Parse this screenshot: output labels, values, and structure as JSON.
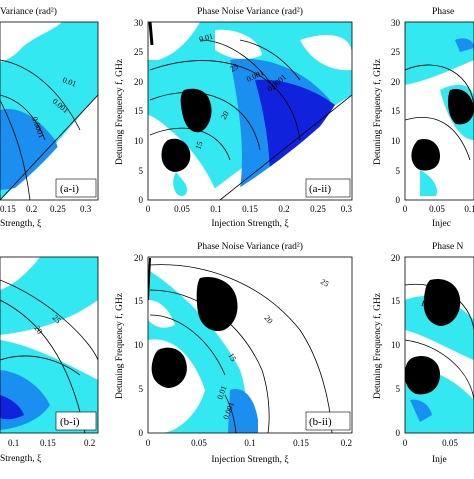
{
  "figure": {
    "panels": [
      {
        "id": "a-i",
        "label": "(a-i)",
        "title": "Variance (rad²)",
        "xlabel": "Strength, ξ",
        "ylabel": "",
        "x_ticks": [
          "0.15",
          "0.2",
          "0.25",
          "0.3"
        ],
        "y_ticks": [],
        "contour_labels": [
          "0.01",
          "0.001",
          "0.0001"
        ]
      },
      {
        "id": "a-ii",
        "label": "(a-ii)",
        "title": "Phase Noise Variance (rad²)",
        "xlabel": "Injection Strength, ξ",
        "ylabel": "Detuning Frequency f, GHz",
        "x_ticks": [
          "0",
          "0.05",
          "0.1",
          "0.15",
          "0.2",
          "0.25",
          "0.3"
        ],
        "y_ticks": [
          "0",
          "5",
          "10",
          "15",
          "20",
          "25",
          "30"
        ],
        "contour_labels": [
          "0.01",
          "0.001",
          "0.0001",
          "25",
          "20",
          "15"
        ]
      },
      {
        "id": "a-iii",
        "label": "",
        "title": "Phase",
        "xlabel": "Injec",
        "ylabel": "Detuning Frequency f, GHz",
        "x_ticks": [
          "0",
          "0.05",
          "0.1"
        ],
        "y_ticks": [
          "0",
          "5",
          "10",
          "15",
          "20",
          "25",
          "30"
        ],
        "contour_labels": []
      },
      {
        "id": "b-i",
        "label": "(b-i)",
        "title": "",
        "xlabel": "Strength, ξ",
        "ylabel": "",
        "x_ticks": [
          "0.1",
          "0.15",
          "0.2"
        ],
        "y_ticks": [],
        "contour_labels": [
          "25",
          "20"
        ]
      },
      {
        "id": "b-ii",
        "label": "(b-ii)",
        "title": "Phase Noise Variance (rad²)",
        "xlabel": "Injection Strength, ξ",
        "ylabel": "Detuning Frequency f, GHz",
        "x_ticks": [
          "0",
          "0.05",
          "0.1",
          "0.15",
          "0.2"
        ],
        "y_ticks": [
          "0",
          "5",
          "10",
          "15",
          "20"
        ],
        "contour_labels": [
          "25",
          "20",
          "15",
          "0.01",
          "0.001"
        ]
      },
      {
        "id": "b-iii",
        "label": "",
        "title": "Phase N",
        "xlabel": "Inje",
        "ylabel": "Detuning Frequency f, GHz",
        "x_ticks": [
          "0",
          "0.05"
        ],
        "y_ticks": [
          "0",
          "5",
          "10",
          "15",
          "20"
        ],
        "contour_labels": [
          "15"
        ]
      }
    ],
    "colors": {
      "light_cyan": "#33e8f0",
      "mid_blue": "#1a8ff0",
      "dark_blue": "#1122dd",
      "black": "#000000"
    }
  },
  "chart_data": [
    {
      "type": "heatmap",
      "panel": "(a-i)",
      "title": "Variance (rad²)",
      "xlabel": "Strength, ξ",
      "xlim": [
        0.1,
        0.3
      ],
      "contour_levels": [
        0.01,
        0.001,
        0.0001
      ]
    },
    {
      "type": "heatmap",
      "panel": "(a-ii)",
      "title": "Phase Noise Variance (rad²)",
      "xlabel": "Injection Strength, ξ",
      "ylabel": "Detuning Frequency f, GHz",
      "xlim": [
        0,
        0.3
      ],
      "ylim": [
        0,
        30
      ],
      "contour_levels": [
        0.01,
        0.001,
        0.0001
      ],
      "frequency_contours": [
        15,
        20,
        25
      ]
    },
    {
      "type": "heatmap",
      "panel": "",
      "title": "Phase",
      "xlabel": "Injec",
      "ylabel": "Detuning Frequency f, GHz",
      "xlim": [
        0,
        0.12
      ],
      "ylim": [
        0,
        30
      ]
    },
    {
      "type": "heatmap",
      "panel": "(b-i)",
      "xlabel": "Strength, ξ",
      "xlim": [
        0.08,
        0.2
      ],
      "frequency_contours": [
        20,
        25
      ]
    },
    {
      "type": "heatmap",
      "panel": "(b-ii)",
      "title": "Phase Noise Variance (rad²)",
      "xlabel": "Injection Strength, ξ",
      "ylabel": "Detuning Frequency f, GHz",
      "xlim": [
        0,
        0.2
      ],
      "ylim": [
        0,
        20
      ],
      "contour_levels": [
        0.01,
        0.001
      ],
      "frequency_contours": [
        15,
        20,
        25
      ]
    },
    {
      "type": "heatmap",
      "panel": "",
      "title": "Phase N",
      "xlabel": "Inje",
      "ylabel": "Detuning Frequency f, GHz",
      "xlim": [
        0,
        0.08
      ],
      "ylim": [
        0,
        20
      ],
      "frequency_contours": [
        15
      ]
    }
  ]
}
